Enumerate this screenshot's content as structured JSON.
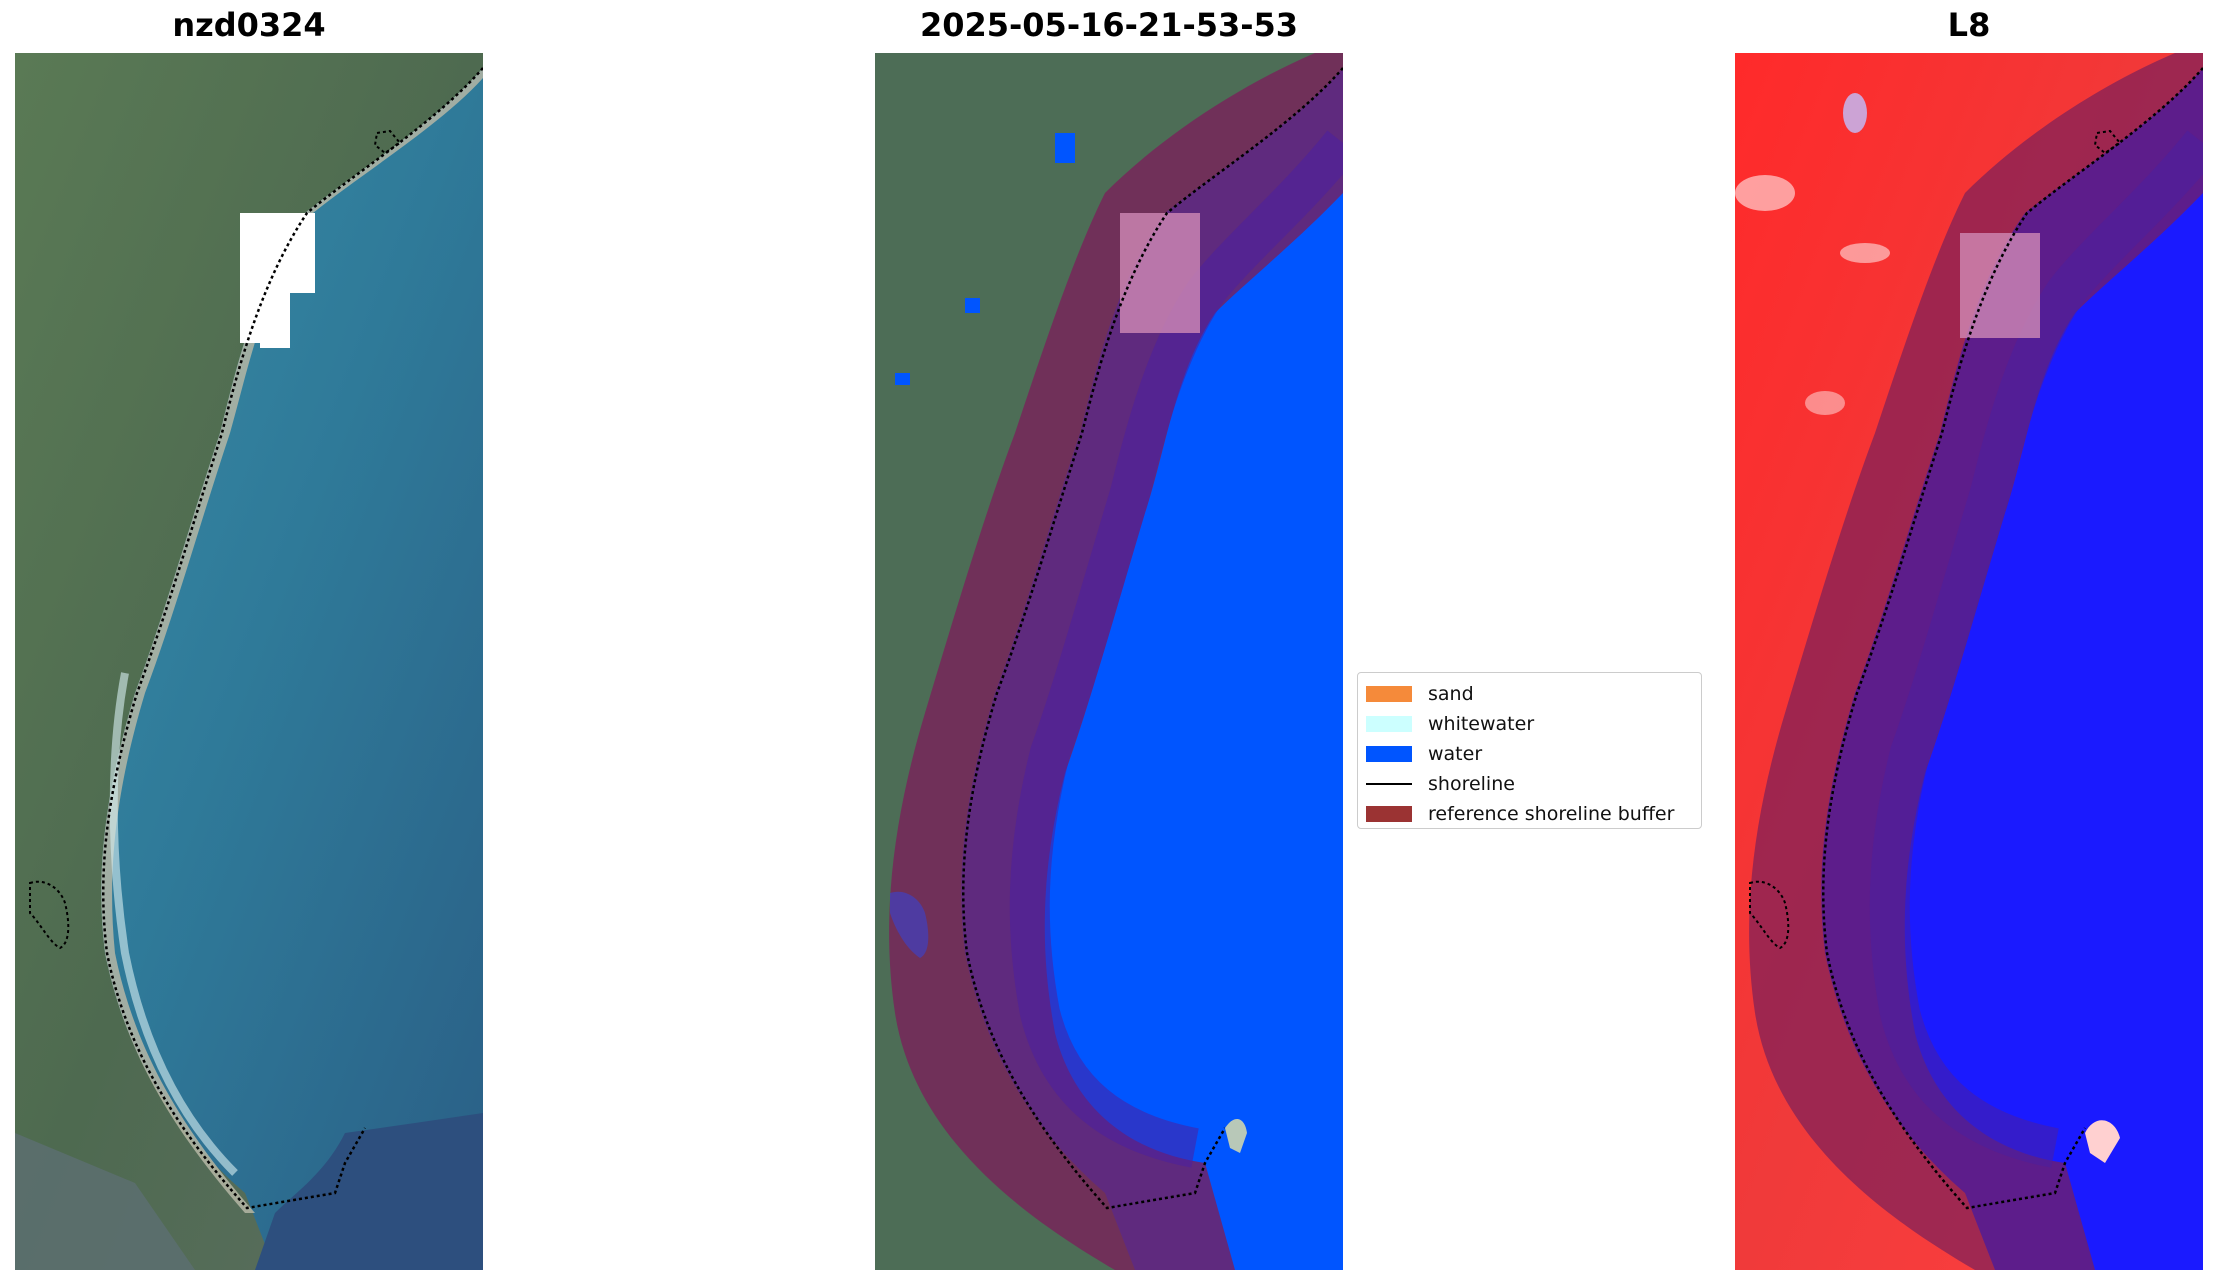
{
  "panels": [
    {
      "title": "nzd0324"
    },
    {
      "title": "2025-05-16-21-53-53"
    },
    {
      "title": "L8"
    }
  ],
  "legend": {
    "items": [
      {
        "label": "sand",
        "color": "#f58a3a",
        "kind": "patch"
      },
      {
        "label": "whitewater",
        "color": "#ccffff",
        "kind": "patch"
      },
      {
        "label": "water",
        "color": "#0055ff",
        "kind": "patch"
      },
      {
        "label": "shoreline",
        "color": "#000000",
        "kind": "line"
      },
      {
        "label": "reference shoreline buffer",
        "color": "#9b3333",
        "kind": "patch"
      }
    ]
  },
  "colors": {
    "land": "#4a6e55",
    "ocean": "#2f7e9a",
    "deep_ocean": "#2b5f86",
    "beach": "#b9b8a6",
    "classified_water": "#0055ff",
    "buffer_overlay": "#7b1f4a",
    "mask": "#ffffff",
    "ndwi_land": "#ff2020",
    "ndwi_water": "#1a1aff"
  }
}
